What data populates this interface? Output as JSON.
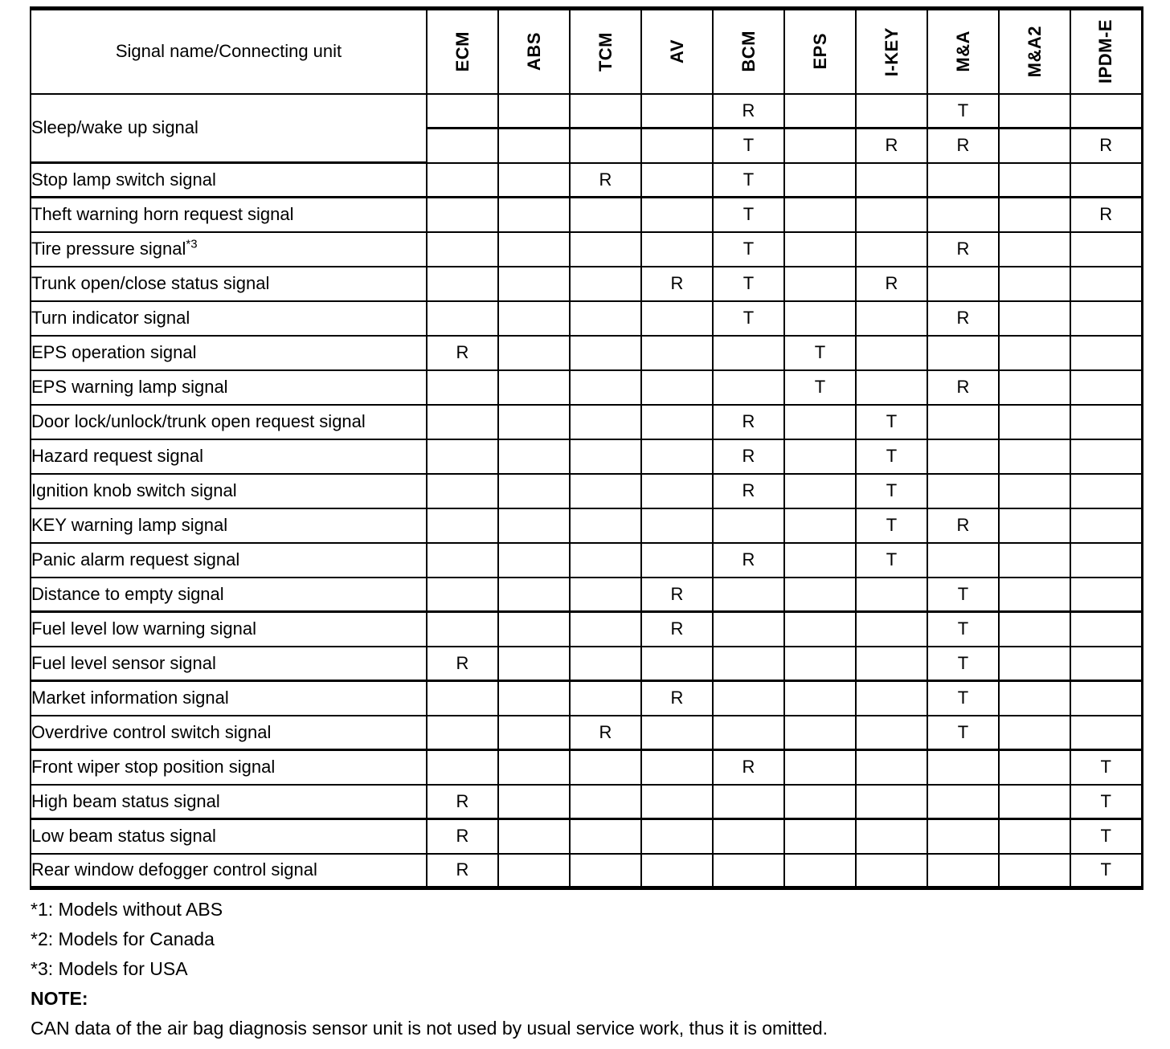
{
  "document": {
    "table": {
      "header": {
        "signal_column_label": "Signal name/Connecting unit",
        "unit_columns": [
          "ECM",
          "ABS",
          "TCM",
          "AV",
          "BCM",
          "EPS",
          "I-KEY",
          "M&A",
          "M&A2",
          "IPDM-E"
        ]
      },
      "rows": [
        {
          "signal": "Sleep/wake up signal",
          "superscript": "",
          "group_end": false,
          "subrows": [
            [
              "",
              "",
              "",
              "",
              "R",
              "",
              "",
              "T",
              "",
              ""
            ],
            [
              "",
              "",
              "",
              "",
              "T",
              "",
              "R",
              "R",
              "",
              "R"
            ]
          ]
        },
        {
          "signal": "Stop lamp switch signal",
          "superscript": "",
          "group_end": true,
          "subrows": [
            [
              "",
              "",
              "R",
              "",
              "T",
              "",
              "",
              "",
              "",
              ""
            ]
          ]
        },
        {
          "signal": "Theft warning horn request signal",
          "superscript": "",
          "group_end": false,
          "subrows": [
            [
              "",
              "",
              "",
              "",
              "T",
              "",
              "",
              "",
              "",
              "R"
            ]
          ]
        },
        {
          "signal": "Tire pressure signal",
          "superscript": "*3",
          "group_end": false,
          "subrows": [
            [
              "",
              "",
              "",
              "",
              "T",
              "",
              "",
              "R",
              "",
              ""
            ]
          ]
        },
        {
          "signal": "Trunk open/close status signal",
          "superscript": "",
          "group_end": false,
          "subrows": [
            [
              "",
              "",
              "",
              "R",
              "T",
              "",
              "R",
              "",
              "",
              ""
            ]
          ]
        },
        {
          "signal": "Turn indicator signal",
          "superscript": "",
          "group_end": false,
          "subrows": [
            [
              "",
              "",
              "",
              "",
              "T",
              "",
              "",
              "R",
              "",
              ""
            ]
          ]
        },
        {
          "signal": "EPS operation signal",
          "superscript": "",
          "group_end": false,
          "subrows": [
            [
              "R",
              "",
              "",
              "",
              "",
              "T",
              "",
              "",
              "",
              ""
            ]
          ]
        },
        {
          "signal": "EPS warning lamp signal",
          "superscript": "",
          "group_end": false,
          "subrows": [
            [
              "",
              "",
              "",
              "",
              "",
              "T",
              "",
              "R",
              "",
              ""
            ]
          ]
        },
        {
          "signal": "Door lock/unlock/trunk open request signal",
          "superscript": "",
          "group_end": false,
          "subrows": [
            [
              "",
              "",
              "",
              "",
              "R",
              "",
              "T",
              "",
              "",
              ""
            ]
          ]
        },
        {
          "signal": "Hazard request signal",
          "superscript": "",
          "group_end": false,
          "subrows": [
            [
              "",
              "",
              "",
              "",
              "R",
              "",
              "T",
              "",
              "",
              ""
            ]
          ]
        },
        {
          "signal": "Ignition knob switch signal",
          "superscript": "",
          "group_end": false,
          "subrows": [
            [
              "",
              "",
              "",
              "",
              "R",
              "",
              "T",
              "",
              "",
              ""
            ]
          ]
        },
        {
          "signal": "KEY warning lamp signal",
          "superscript": "",
          "group_end": false,
          "subrows": [
            [
              "",
              "",
              "",
              "",
              "",
              "",
              "T",
              "R",
              "",
              ""
            ]
          ]
        },
        {
          "signal": "Panic alarm request signal",
          "superscript": "",
          "group_end": false,
          "subrows": [
            [
              "",
              "",
              "",
              "",
              "R",
              "",
              "T",
              "",
              "",
              ""
            ]
          ]
        },
        {
          "signal": "Distance to empty signal",
          "superscript": "",
          "group_end": true,
          "subrows": [
            [
              "",
              "",
              "",
              "R",
              "",
              "",
              "",
              "T",
              "",
              ""
            ]
          ]
        },
        {
          "signal": "Fuel level low warning signal",
          "superscript": "",
          "group_end": false,
          "subrows": [
            [
              "",
              "",
              "",
              "R",
              "",
              "",
              "",
              "T",
              "",
              ""
            ]
          ]
        },
        {
          "signal": "Fuel level sensor signal",
          "superscript": "",
          "group_end": true,
          "subrows": [
            [
              "R",
              "",
              "",
              "",
              "",
              "",
              "",
              "T",
              "",
              ""
            ]
          ]
        },
        {
          "signal": "Market information signal",
          "superscript": "",
          "group_end": false,
          "subrows": [
            [
              "",
              "",
              "",
              "R",
              "",
              "",
              "",
              "T",
              "",
              ""
            ]
          ]
        },
        {
          "signal": "Overdrive control switch signal",
          "superscript": "",
          "group_end": true,
          "subrows": [
            [
              "",
              "",
              "R",
              "",
              "",
              "",
              "",
              "T",
              "",
              ""
            ]
          ]
        },
        {
          "signal": "Front wiper stop position signal",
          "superscript": "",
          "group_end": false,
          "subrows": [
            [
              "",
              "",
              "",
              "",
              "R",
              "",
              "",
              "",
              "",
              "T"
            ]
          ]
        },
        {
          "signal": "High beam status signal",
          "superscript": "",
          "group_end": true,
          "subrows": [
            [
              "R",
              "",
              "",
              "",
              "",
              "",
              "",
              "",
              "",
              "T"
            ]
          ]
        },
        {
          "signal": "Low beam status signal",
          "superscript": "",
          "group_end": false,
          "subrows": [
            [
              "R",
              "",
              "",
              "",
              "",
              "",
              "",
              "",
              "",
              "T"
            ]
          ]
        },
        {
          "signal": "Rear window defogger control signal",
          "superscript": "",
          "group_end": false,
          "subrows": [
            [
              "R",
              "",
              "",
              "",
              "",
              "",
              "",
              "",
              "",
              "T"
            ]
          ]
        }
      ]
    },
    "footnotes": [
      "*1: Models without ABS",
      "*2: Models for Canada",
      "*3: Models for USA"
    ],
    "note": {
      "label": "NOTE:",
      "text": "CAN data of the air bag diagnosis sensor unit is not used by usual service work, thus it is omitted."
    }
  }
}
